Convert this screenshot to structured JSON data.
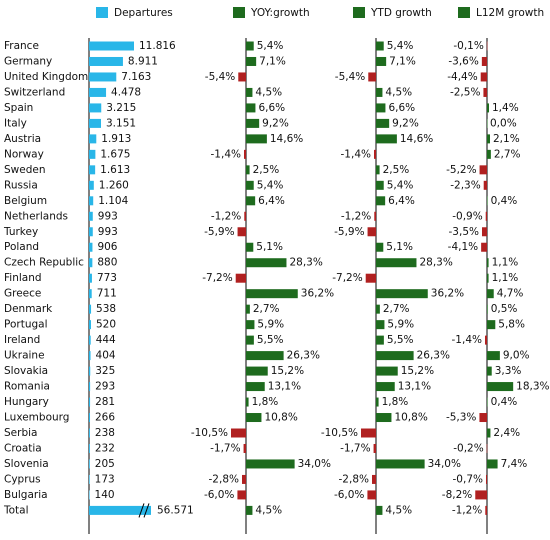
{
  "chart_data": {
    "type": "bar",
    "categories": [
      "France",
      "Germany",
      "United Kingdom",
      "Switzerland",
      "Spain",
      "Italy",
      "Austria",
      "Norway",
      "Sweden",
      "Russia",
      "Belgium",
      "Netherlands",
      "Turkey",
      "Poland",
      "Czech Republic",
      "Finland",
      "Greece",
      "Denmark",
      "Portugal",
      "Ireland",
      "Ukraine",
      "Slovakia",
      "Romania",
      "Hungary",
      "Luxembourg",
      "Serbia",
      "Croatia",
      "Slovenia",
      "Cyprus",
      "Bulgaria",
      "Total"
    ],
    "axis_break_on_last": true,
    "series": [
      {
        "name": "Departures",
        "color": "#29b6e8",
        "values": [
          11816,
          8911,
          7163,
          4478,
          3215,
          3151,
          1913,
          1675,
          1613,
          1260,
          1104,
          993,
          993,
          906,
          880,
          773,
          711,
          538,
          520,
          444,
          404,
          325,
          293,
          281,
          266,
          238,
          232,
          205,
          173,
          140,
          56571
        ],
        "value_labels": [
          "11.816",
          "8.911",
          "7.163",
          "4.478",
          "3.215",
          "3.151",
          "1.913",
          "1.675",
          "1.613",
          "1.260",
          "1.104",
          "993",
          "993",
          "906",
          "880",
          "773",
          "711",
          "538",
          "520",
          "444",
          "404",
          "325",
          "293",
          "281",
          "266",
          "238",
          "232",
          "205",
          "173",
          "140",
          "56.571"
        ]
      },
      {
        "name": "YOY:growth",
        "color": "#1e6b1e",
        "negative_color": "#b02020",
        "values": [
          5.4,
          7.1,
          -5.4,
          4.5,
          6.6,
          9.2,
          14.6,
          -1.4,
          2.5,
          5.4,
          6.4,
          -1.2,
          -5.9,
          5.1,
          28.3,
          -7.2,
          36.2,
          2.7,
          5.9,
          5.5,
          26.3,
          15.2,
          13.1,
          1.8,
          10.8,
          -10.5,
          -1.7,
          34.0,
          -2.8,
          -6.0,
          4.5
        ],
        "value_labels": [
          "5,4%",
          "7,1%",
          "-5,4%",
          "4,5%",
          "6,6%",
          "9,2%",
          "14,6%",
          "-1,4%",
          "2,5%",
          "5,4%",
          "6,4%",
          "-1,2%",
          "-5,9%",
          "5,1%",
          "28,3%",
          "-7,2%",
          "36,2%",
          "2,7%",
          "5,9%",
          "5,5%",
          "26,3%",
          "15,2%",
          "13,1%",
          "1,8%",
          "10,8%",
          "-10,5%",
          "-1,7%",
          "34,0%",
          "-2,8%",
          "-6,0%",
          "4,5%"
        ]
      },
      {
        "name": "YTD growth",
        "color": "#1e6b1e",
        "negative_color": "#b02020",
        "values": [
          5.4,
          7.1,
          -5.4,
          4.5,
          6.6,
          9.2,
          14.6,
          -1.4,
          2.5,
          5.4,
          6.4,
          -1.2,
          -5.9,
          5.1,
          28.3,
          -7.2,
          36.2,
          2.7,
          5.9,
          5.5,
          26.3,
          15.2,
          13.1,
          1.8,
          10.8,
          -10.5,
          -1.7,
          34.0,
          -2.8,
          -6.0,
          4.5
        ],
        "value_labels": [
          "5,4%",
          "7,1%",
          "-5,4%",
          "4,5%",
          "6,6%",
          "9,2%",
          "14,6%",
          "-1,4%",
          "2,5%",
          "5,4%",
          "6,4%",
          "-1,2%",
          "-5,9%",
          "5,1%",
          "28,3%",
          "-7,2%",
          "36,2%",
          "2,7%",
          "5,9%",
          "5,5%",
          "26,3%",
          "15,2%",
          "13,1%",
          "1,8%",
          "10,8%",
          "-10,5%",
          "-1,7%",
          "34,0%",
          "-2,8%",
          "-6,0%",
          "4,5%"
        ]
      },
      {
        "name": "L12M growth",
        "color": "#1e6b1e",
        "negative_color": "#b02020",
        "values": [
          -0.1,
          -3.6,
          -4.4,
          -2.5,
          1.4,
          0.0,
          2.1,
          2.7,
          -5.2,
          -2.3,
          0.4,
          -0.9,
          -3.5,
          -4.1,
          1.1,
          1.1,
          4.7,
          0.5,
          5.8,
          -1.4,
          9.0,
          3.3,
          18.3,
          0.4,
          -5.3,
          2.4,
          -0.2,
          7.4,
          -0.7,
          -8.2,
          -1.2
        ],
        "value_labels": [
          "-0,1%",
          "-3,6%",
          "-4,4%",
          "-2,5%",
          "1,4%",
          "0,0%",
          "2,1%",
          "2,7%",
          "-5,2%",
          "-2,3%",
          "0,4%",
          "-0,9%",
          "-3,5%",
          "-4,1%",
          "1,1%",
          "1,1%",
          "4,7%",
          "0,5%",
          "5,8%",
          "-1,4%",
          "9,0%",
          "3,3%",
          "18,3%",
          "0,4%",
          "-5,3%",
          "2,4%",
          "-0,2%",
          "7,4%",
          "-0,7%",
          "-8,2%",
          "-1,2%"
        ]
      }
    ]
  }
}
